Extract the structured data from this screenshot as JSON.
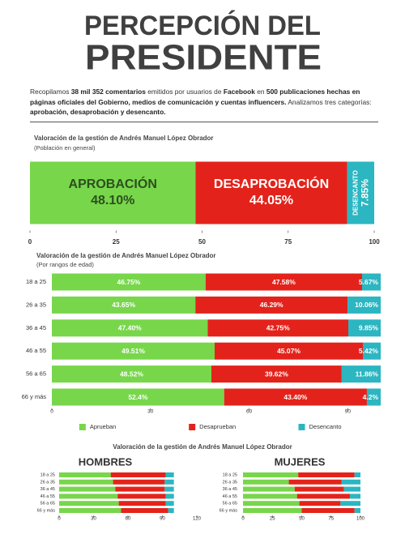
{
  "header": {
    "title_lines": [
      "PERCEPCIÓN DEL",
      "PRESIDENTE"
    ],
    "intro": [
      {
        "text": "Recopilamos ",
        "bold": false
      },
      {
        "text": "38 mil 352 comentarios",
        "bold": true
      },
      {
        "text": " emitidos por usuarios de ",
        "bold": false
      },
      {
        "text": "Facebook",
        "bold": true
      },
      {
        "text": " en ",
        "bold": false
      },
      {
        "text": "500 publicaciones hechas en páginas oficiales del Gobierno, medios de comunicación y cuentas influencers.",
        "bold": true
      },
      {
        "text": " Analizamos tres categorías: ",
        "bold": false
      },
      {
        "text": "aprobación, desaprobación y desencanto.",
        "bold": true
      }
    ]
  },
  "gender_section": {
    "title": "Valoración de la gestión de Andrés Manuel López Obrador"
  },
  "chart_data": [
    {
      "type": "stacked-hbar",
      "title": "Valoración de la gestión de Andrés Manuel López Obrador",
      "subtitle": "(Población en general)",
      "series": [
        {
          "name": "APROBACIÓN",
          "color": "#78d64b",
          "values": [
            48.1
          ],
          "value_labels": [
            "48.10%"
          ]
        },
        {
          "name": "DESAPROBACIÓN",
          "color": "#e3231b",
          "values": [
            44.05
          ],
          "value_labels": [
            "44.05%"
          ]
        },
        {
          "name": "DESENCANTO",
          "color": "#2bb6c1",
          "values": [
            7.85
          ],
          "value_labels": [
            "7.85%"
          ]
        }
      ],
      "xlim": [
        0,
        100
      ],
      "xticks": [
        0,
        25,
        50,
        75,
        100
      ]
    },
    {
      "type": "stacked-hbar",
      "title": "Valoración de la gestión de Andrés Manuel López Obrador",
      "subtitle": "(Por rangos de edad)",
      "categories": [
        "18 a 25",
        "26 a 35",
        "36 a 45",
        "46 a 55",
        "56 a 65",
        "66 y más"
      ],
      "series": [
        {
          "name": "Aprueban",
          "color": "#78d64b",
          "values": [
            46.75,
            43.65,
            47.4,
            49.51,
            48.52,
            52.4
          ],
          "value_labels": [
            "46.75%",
            "43.65%",
            "47.40%",
            "49.51%",
            "48.52%",
            "52.4%"
          ]
        },
        {
          "name": "Desaprueban",
          "color": "#e3231b",
          "values": [
            47.58,
            46.29,
            42.75,
            45.07,
            39.62,
            43.4
          ],
          "value_labels": [
            "47.58%",
            "46.29%",
            "42.75%",
            "45.07%",
            "39.62%",
            "43.40%"
          ]
        },
        {
          "name": "Desencanto",
          "color": "#2bb6c1",
          "values": [
            5.67,
            10.06,
            9.85,
            5.42,
            11.86,
            4.2
          ],
          "value_labels": [
            "5.67%",
            "10.06%",
            "9.85%",
            "5.42%",
            "11.86%",
            "4.2%"
          ]
        }
      ],
      "xlim": [
        0,
        100
      ],
      "xticks": [
        0,
        30,
        60,
        90
      ],
      "legend": "bottom"
    },
    {
      "type": "stacked-hbar",
      "title": "HOMBRES",
      "categories": [
        "18 a 25",
        "26 a 35",
        "36 a 45",
        "46 a 55",
        "56 a 65",
        "66 y más"
      ],
      "series": [
        {
          "color": "#78d64b",
          "values": [
            45,
            47,
            49,
            51,
            52,
            54
          ]
        },
        {
          "color": "#e3231b",
          "values": [
            48,
            45,
            43,
            42,
            41,
            41
          ]
        },
        {
          "color": "#2bb6c1",
          "values": [
            7,
            8,
            8,
            7,
            7,
            5
          ]
        }
      ],
      "xlim": [
        0,
        120
      ],
      "xticks": [
        0,
        30,
        60,
        90,
        120
      ]
    },
    {
      "type": "stacked-hbar",
      "title": "MUJERES",
      "categories": [
        "18 a 25",
        "26 a 35",
        "36 a 45",
        "46 a 55",
        "56 a 65",
        "66 y más"
      ],
      "series": [
        {
          "color": "#78d64b",
          "values": [
            47,
            39,
            44,
            46,
            48,
            50
          ]
        },
        {
          "color": "#e3231b",
          "values": [
            48,
            45,
            42,
            45,
            35,
            45
          ]
        },
        {
          "color": "#2bb6c1",
          "values": [
            5,
            16,
            14,
            9,
            17,
            5
          ]
        }
      ],
      "xlim": [
        0,
        100
      ],
      "xticks": [
        0,
        25,
        50,
        75,
        100
      ]
    }
  ]
}
